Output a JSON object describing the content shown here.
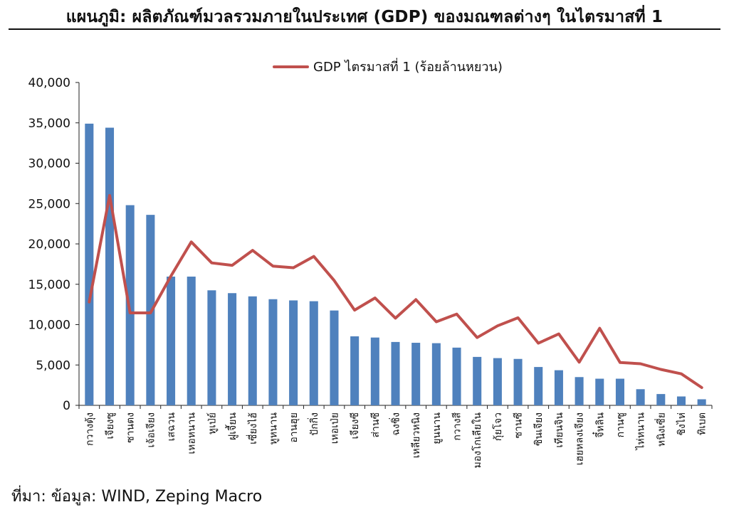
{
  "title": "แผนภูมิ: ผลิตภัณฑ์มวลรวมภายในประเทศ (GDP) ของมณฑลต่างๆ ในไตรมาสที่ 1",
  "source": "ที่มา: ข้อมูล: WIND, Zeping Macro",
  "chart_data": {
    "type": "bar",
    "title": "แผนภูมิ: ผลิตภัณฑ์มวลรวมภายในประเทศ (GDP) ของมณฑลต่างๆ ในไตรมาสที่ 1",
    "xlabel": "",
    "ylabel": "",
    "ylim": [
      0,
      40000
    ],
    "yticks": [
      "0",
      "5,000",
      "10,000",
      "15,000",
      "20,000",
      "25,000",
      "30,000",
      "35,000",
      "40,000"
    ],
    "grid": false,
    "legend_position": "top",
    "categories": [
      "กวางตุ้ง",
      "เจียงซู",
      "ซานตง",
      "เจ้อเจียง",
      "เสฉวน",
      "เหอหนาน",
      "หูเป่ย์",
      "ฝูเจี้ยน",
      "เซี่ยงไฮ้",
      "หูหนาน",
      "อานฮุย",
      "ปักกิ่ง",
      "เหอเป่ย",
      "เจียงซี",
      "ส่านซี",
      "ฉงชิ่ง",
      "เหลียวหนิง",
      "ยูนนาน",
      "กวางสี",
      "มองโกเลียใน",
      "กุ้ยโจว",
      "ซานซี",
      "ซินเจียง",
      "เทียนจิน",
      "เฮยหลงเจียง",
      "จี๋หลิน",
      "กานซู",
      "ไห่หนาน",
      "หนิงเซี่ย",
      "ชิงไห่",
      "ทิเบต"
    ],
    "series": [
      {
        "type": "bar",
        "color": "#4f81bd",
        "values": [
          34900,
          34400,
          24800,
          23600,
          15950,
          15950,
          14250,
          13900,
          13500,
          13150,
          13000,
          12900,
          11750,
          8550,
          8400,
          7850,
          7750,
          7700,
          7150,
          6000,
          5850,
          5750,
          4750,
          4350,
          3500,
          3300,
          3300,
          2000,
          1400,
          1100,
          750
        ]
      },
      {
        "type": "line",
        "name": "GDP ไตรมาสที่ 1 (ร้อยล้านหยวน)",
        "color": "#c0504d",
        "values": [
          12800,
          26000,
          11450,
          11450,
          16000,
          20250,
          17650,
          17350,
          19200,
          17250,
          17050,
          18450,
          15450,
          11800,
          13300,
          10800,
          13100,
          10350,
          11300,
          8400,
          9850,
          10850,
          7700,
          8850,
          5350,
          9550,
          5300,
          5150,
          4450,
          3900,
          2200
        ]
      }
    ]
  }
}
